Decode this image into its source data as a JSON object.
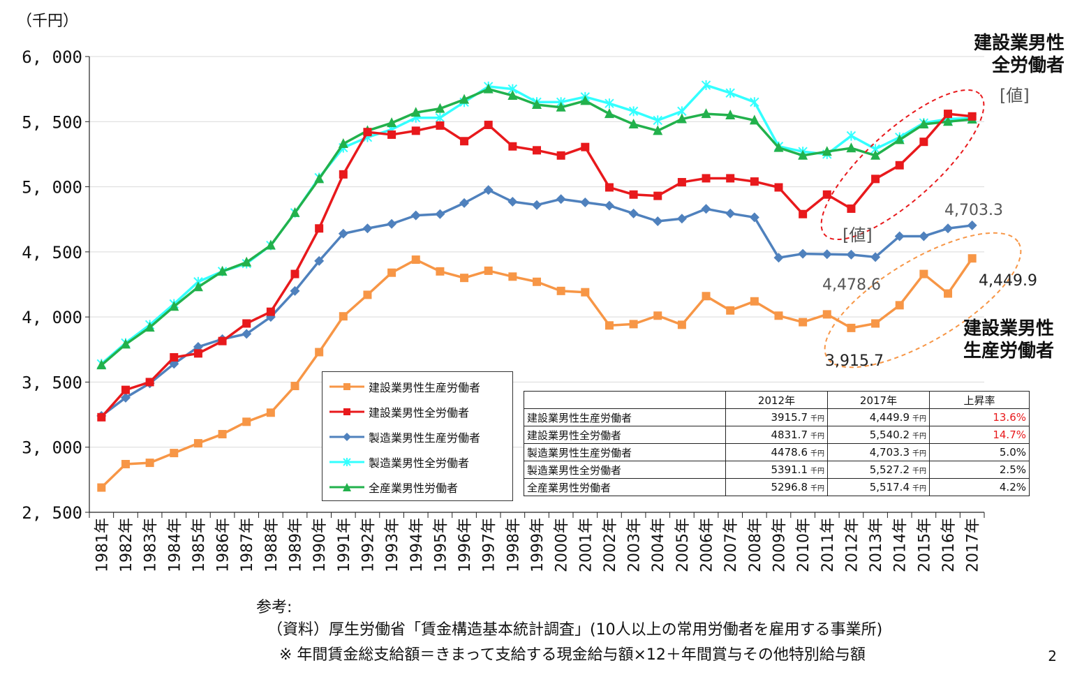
{
  "chart_data": {
    "type": "line",
    "unit_label": "（千円）",
    "categories": [
      "1981年",
      "1982年",
      "1983年",
      "1984年",
      "1985年",
      "1986年",
      "1987年",
      "1988年",
      "1989年",
      "1990年",
      "1991年",
      "1992年",
      "1993年",
      "1994年",
      "1995年",
      "1996年",
      "1997年",
      "1998年",
      "1999年",
      "2000年",
      "2001年",
      "2002年",
      "2003年",
      "2004年",
      "2005年",
      "2006年",
      "2007年",
      "2008年",
      "2009年",
      "2010年",
      "2011年",
      "2012年",
      "2013年",
      "2014年",
      "2015年",
      "2016年",
      "2017年"
    ],
    "ylim": [
      2500,
      6000
    ],
    "yticks": [
      "2, 500",
      "3, 000",
      "3, 500",
      "4, 000",
      "4, 500",
      "5, 000",
      "5, 500",
      "6, 000"
    ],
    "series": [
      {
        "name": "建設業男性生産労働者",
        "color": "#f79646",
        "marker": "square",
        "values": [
          2690,
          2870,
          2880,
          2955,
          3030,
          3100,
          3195,
          3265,
          3470,
          3730,
          4005,
          4170,
          4340,
          4440,
          4350,
          4300,
          4355,
          4310,
          4270,
          4200,
          4190,
          3935,
          3945,
          4010,
          3940,
          4160,
          4050,
          4120,
          4010,
          3960,
          4020,
          3915.7,
          3950,
          4090,
          4330,
          4180,
          4449.9
        ]
      },
      {
        "name": "建設業男性全労働者",
        "color": "#e8191c",
        "marker": "square",
        "values": [
          3230,
          3440,
          3500,
          3690,
          3720,
          3815,
          3950,
          4040,
          4330,
          4680,
          5095,
          5420,
          5400,
          5430,
          5470,
          5350,
          5475,
          5310,
          5280,
          5240,
          5305,
          4995,
          4940,
          4930,
          5035,
          5065,
          5065,
          5040,
          4995,
          4790,
          4940,
          4831.7,
          5060,
          5165,
          5345,
          5560,
          5540.2
        ]
      },
      {
        "name": "製造業男性生産労働者",
        "color": "#4f81bd",
        "marker": "diamond",
        "values": [
          3240,
          3380,
          3490,
          3640,
          3770,
          3830,
          3870,
          4000,
          4200,
          4430,
          4640,
          4680,
          4715,
          4780,
          4790,
          4875,
          4975,
          4885,
          4860,
          4905,
          4880,
          4855,
          4795,
          4735,
          4755,
          4830,
          4795,
          4765,
          4455,
          4485,
          4482,
          4478.6,
          4460,
          4620,
          4620,
          4680,
          4703.3
        ]
      },
      {
        "name": "製造業男性全労働者",
        "color": "#33ffff",
        "marker": "star",
        "values": [
          3640,
          3800,
          3940,
          4100,
          4270,
          4350,
          4410,
          4550,
          4800,
          5070,
          5300,
          5380,
          5440,
          5530,
          5530,
          5650,
          5770,
          5750,
          5650,
          5650,
          5690,
          5640,
          5580,
          5510,
          5580,
          5780,
          5720,
          5650,
          5310,
          5270,
          5250,
          5391.1,
          5290,
          5380,
          5490,
          5520,
          5527.2
        ]
      },
      {
        "name": "全産業男性労働者",
        "color": "#22b14c",
        "marker": "triangle",
        "values": [
          3630,
          3790,
          3920,
          4080,
          4230,
          4350,
          4420,
          4550,
          4800,
          5060,
          5330,
          5430,
          5490,
          5570,
          5600,
          5670,
          5750,
          5700,
          5630,
          5610,
          5660,
          5560,
          5480,
          5430,
          5520,
          5560,
          5550,
          5510,
          5300,
          5240,
          5270,
          5296.8,
          5240,
          5360,
          5480,
          5500,
          5517.4
        ]
      }
    ]
  },
  "annotations": {
    "top_callout": "建設業男性\n全労働者",
    "top_value_tag": "[値]",
    "mid_value_tag": "[値]",
    "mfg_2017_value": "4,703.3",
    "mfg_2012_value": "4,478.6",
    "const_prod_2017_value": "4,449.9",
    "const_prod_2012_value": "3,915.7",
    "bottom_callout": "建設業男性\n生産労働者"
  },
  "summary_table": {
    "headers": [
      "",
      "2012年",
      "2017年",
      "上昇率"
    ],
    "unit": "千円",
    "rows": [
      {
        "name": "建設業男性生産労働者",
        "v2012": "3915.7",
        "v2017": "4,449.9",
        "rate": "13.6%",
        "highlight": true
      },
      {
        "name": "建設業男性全労働者",
        "v2012": "4831.7",
        "v2017": "5,540.2",
        "rate": "14.7%",
        "highlight": true
      },
      {
        "name": "製造業男性生産労働者",
        "v2012": "4478.6",
        "v2017": "4,703.3",
        "rate": "5.0%",
        "highlight": false
      },
      {
        "name": "製造業男性全労働者",
        "v2012": "5391.1",
        "v2017": "5,527.2",
        "rate": "2.5%",
        "highlight": false
      },
      {
        "name": "全産業男性労働者",
        "v2012": "5296.8",
        "v2017": "5,517.4",
        "rate": "4.2%",
        "highlight": false
      }
    ]
  },
  "footnotes": {
    "ref": "参考:",
    "source": "（資料）厚生労働省「賃金構造基本統計調査」(10人以上の常用労働者を雇用する事業所)",
    "note": "※ 年間賃金総支給額＝きまって支給する現金給与額×12＋年間賞与その他特別給与額"
  },
  "page_number": "2"
}
